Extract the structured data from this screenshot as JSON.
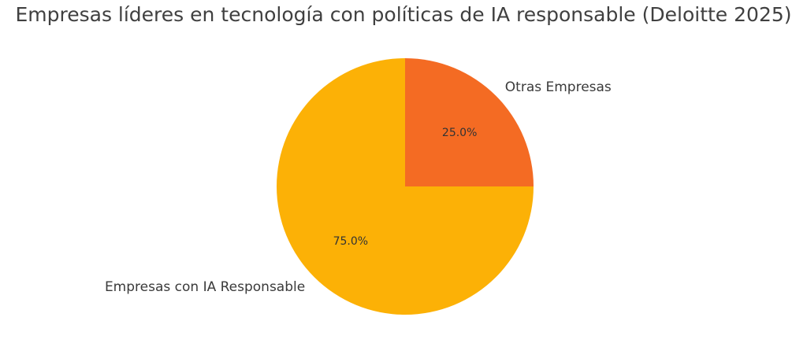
{
  "chart_data": {
    "type": "pie",
    "title": "Empresas líderes en tecnología con políticas de IA responsable (Deloitte 2025)",
    "slices": [
      {
        "label": "Otras Empresas",
        "value": 25.0,
        "pct_label": "25.0%",
        "color": "#f46b23"
      },
      {
        "label": "Empresas con IA Responsable",
        "value": 75.0,
        "pct_label": "75.0%",
        "color": "#fcb106"
      }
    ],
    "start_angle_deg": 90,
    "direction": "clockwise"
  }
}
